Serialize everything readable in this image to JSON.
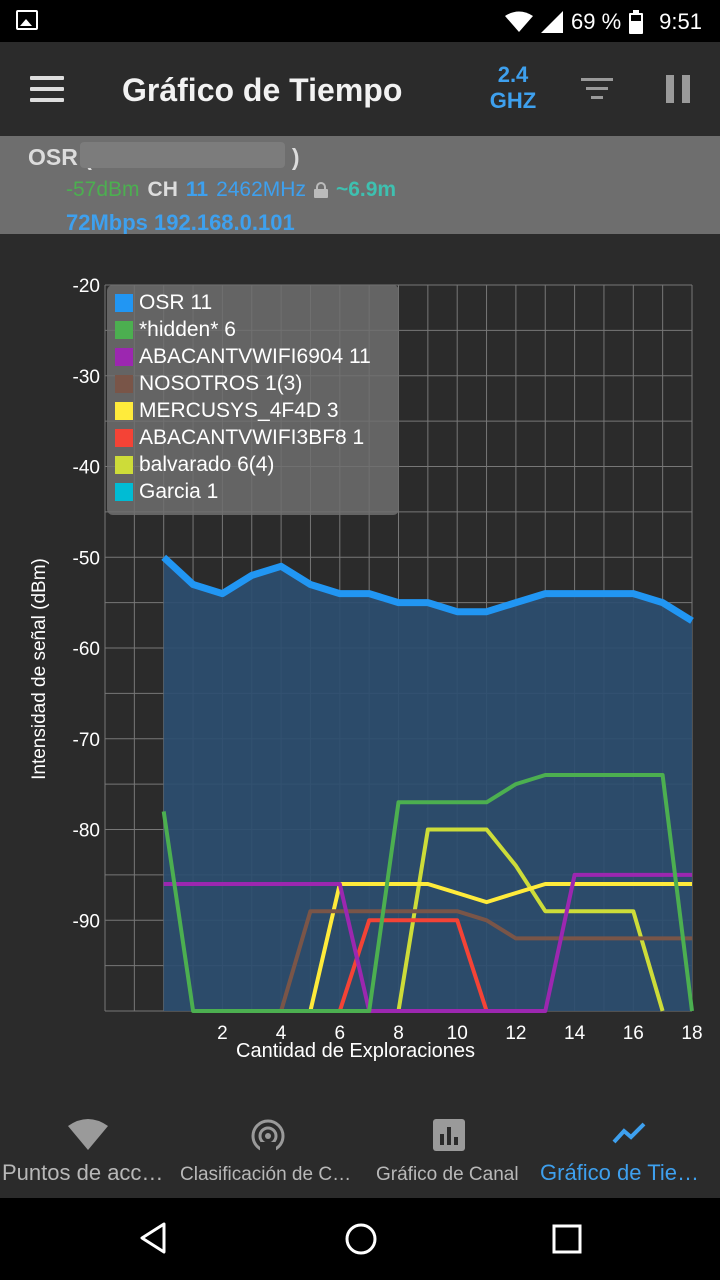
{
  "status_bar": {
    "battery": "69 %",
    "time": "9:51"
  },
  "app_bar": {
    "title": "Gráfico de Tiempo",
    "band_line1": "2.4",
    "band_line2": "GHZ"
  },
  "info": {
    "ssid": "OSR (",
    "ssid_close": ")",
    "signal": "-57dBm",
    "ch_label": "CH",
    "channel": "11",
    "frequency": "2462MHz",
    "distance": "~6.9m",
    "speed_ip": "72Mbps 192.168.0.101"
  },
  "chart_data": {
    "type": "area",
    "xlabel": "Cantidad de Exploraciones",
    "ylabel": "Intensidad de señal (dBm)",
    "xlim": [
      -2,
      18
    ],
    "ylim": [
      -100,
      -20
    ],
    "x_ticks": [
      2,
      4,
      6,
      8,
      10,
      12,
      14,
      16,
      18
    ],
    "y_ticks": [
      -20,
      -30,
      -40,
      -50,
      -60,
      -70,
      -80,
      -90
    ],
    "legend_position": "top-left",
    "series": [
      {
        "name": "OSR 11",
        "color": "#2196f3",
        "filled": true,
        "points": [
          [
            0,
            -50
          ],
          [
            1,
            -53
          ],
          [
            2,
            -54
          ],
          [
            3,
            -52
          ],
          [
            4,
            -51
          ],
          [
            5,
            -53
          ],
          [
            6,
            -54
          ],
          [
            7,
            -54
          ],
          [
            8,
            -55
          ],
          [
            9,
            -55
          ],
          [
            10,
            -56
          ],
          [
            11,
            -56
          ],
          [
            12,
            -55
          ],
          [
            13,
            -54
          ],
          [
            14,
            -54
          ],
          [
            15,
            -54
          ],
          [
            16,
            -54
          ],
          [
            17,
            -55
          ],
          [
            18,
            -57
          ]
        ]
      },
      {
        "name": "*hidden* 6",
        "color": "#4caf50",
        "points": [
          [
            0,
            -78
          ],
          [
            1,
            -100
          ],
          [
            7,
            -100
          ],
          [
            8,
            -77
          ],
          [
            9,
            -77
          ],
          [
            10,
            -77
          ],
          [
            11,
            -77
          ],
          [
            12,
            -75
          ],
          [
            13,
            -74
          ],
          [
            14,
            -74
          ],
          [
            15,
            -74
          ],
          [
            16,
            -74
          ],
          [
            17,
            -74
          ],
          [
            18,
            -100
          ]
        ]
      },
      {
        "name": "ABACANTVWIFI6904 11",
        "color": "#9c27b0",
        "points": [
          [
            0,
            -86
          ],
          [
            1,
            -86
          ],
          [
            2,
            -86
          ],
          [
            3,
            -86
          ],
          [
            4,
            -86
          ],
          [
            5,
            -86
          ],
          [
            6,
            -86
          ],
          [
            7,
            -100
          ],
          [
            13,
            -100
          ],
          [
            14,
            -85
          ],
          [
            15,
            -85
          ],
          [
            16,
            -85
          ],
          [
            17,
            -85
          ],
          [
            18,
            -85
          ]
        ]
      },
      {
        "name": "NOSOTROS 1(3)",
        "color": "#795548",
        "points": [
          [
            4,
            -100
          ],
          [
            5,
            -89
          ],
          [
            6,
            -89
          ],
          [
            7,
            -89
          ],
          [
            8,
            -89
          ],
          [
            9,
            -89
          ],
          [
            10,
            -89
          ],
          [
            11,
            -90
          ],
          [
            12,
            -92
          ],
          [
            13,
            -92
          ],
          [
            14,
            -92
          ],
          [
            15,
            -92
          ],
          [
            16,
            -92
          ],
          [
            17,
            -92
          ],
          [
            18,
            -92
          ]
        ]
      },
      {
        "name": "MERCUSYS_4F4D 3",
        "color": "#ffeb3b",
        "points": [
          [
            5,
            -100
          ],
          [
            6,
            -86
          ],
          [
            7,
            -86
          ],
          [
            8,
            -86
          ],
          [
            9,
            -86
          ],
          [
            10,
            -87
          ],
          [
            11,
            -88
          ],
          [
            12,
            -87
          ],
          [
            13,
            -86
          ],
          [
            14,
            -86
          ],
          [
            15,
            -86
          ],
          [
            16,
            -86
          ],
          [
            17,
            -86
          ],
          [
            18,
            -86
          ]
        ]
      },
      {
        "name": "ABACANTVWIFI3BF8 1",
        "color": "#f44336",
        "points": [
          [
            6,
            -100
          ],
          [
            7,
            -90
          ],
          [
            8,
            -90
          ],
          [
            9,
            -90
          ],
          [
            10,
            -90
          ],
          [
            11,
            -100
          ]
        ]
      },
      {
        "name": "balvarado 6(4)",
        "color": "#cddc39",
        "points": [
          [
            8,
            -100
          ],
          [
            9,
            -80
          ],
          [
            10,
            -80
          ],
          [
            11,
            -80
          ],
          [
            12,
            -84
          ],
          [
            13,
            -89
          ],
          [
            14,
            -89
          ],
          [
            15,
            -89
          ],
          [
            16,
            -89
          ],
          [
            17,
            -100
          ]
        ]
      },
      {
        "name": "Garcia 1",
        "color": "#00bcd4",
        "points": []
      }
    ]
  },
  "bottom_nav": {
    "tabs": [
      {
        "label": "Puntos de acc…",
        "icon": "wifi-icon"
      },
      {
        "label": "Clasificación de C…",
        "icon": "radar-icon"
      },
      {
        "label": "Gráfico de Canal",
        "icon": "bar-chart-icon"
      },
      {
        "label": "Gráfico de Tie…",
        "icon": "line-chart-icon"
      }
    ],
    "active_index": 3,
    "active_color": "#3ea0ee"
  }
}
